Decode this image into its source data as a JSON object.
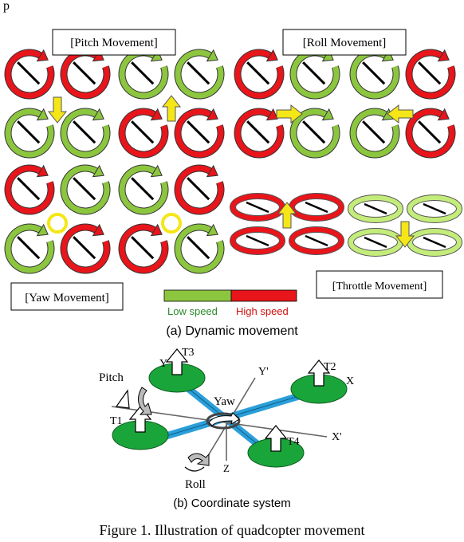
{
  "labels": {
    "top_stub": "p",
    "pitch": "[Pitch Movement]",
    "roll": "[Roll Movement]",
    "yaw": "[Yaw Movement]",
    "throttle": "[Throttle Movement]",
    "low_speed": "Low speed",
    "high_speed": "High speed",
    "caption_a": "(a)   Dynamic movement",
    "caption_b": "(b) Coordinate system",
    "figure_caption": "Figure 1.    Illustration of quadcopter movement"
  },
  "coords": {
    "t1": "T1",
    "t2": "T2",
    "t3": "T3",
    "t4": "T4",
    "x": "X",
    "y": "Y",
    "x_prime": "X'",
    "y_prime": "Y'",
    "z": "Z",
    "pitch": "Pitch",
    "yaw": "Yaw",
    "roll": "Roll"
  },
  "colors": {
    "low_speed": "#8cc63f",
    "high_speed": "#e8151b",
    "arrow": "#f5e617",
    "rotor_pad": "#1aa53a",
    "arm": "#2b9fd9"
  }
}
